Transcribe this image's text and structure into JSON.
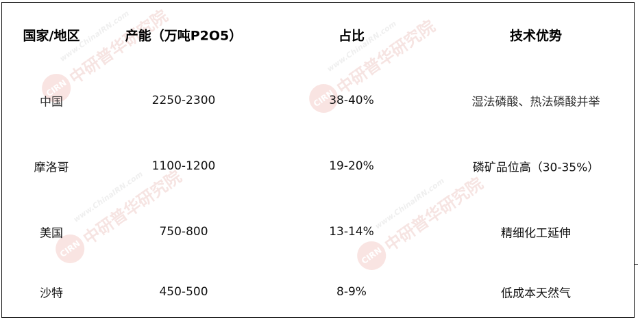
{
  "watermark": {
    "logo": "CIRN",
    "name": "中研普华研究院",
    "url": "www.ChinaIRN.com"
  },
  "table": {
    "headers": [
      "国家/地区",
      "产能（万吨P2O5）",
      "占比",
      "技术优势"
    ],
    "rows": [
      [
        "中国",
        "2250-2300",
        "38-40%",
        "湿法磷酸、热法磷酸并举"
      ],
      [
        "摩洛哥",
        "1100-1200",
        "19-20%",
        "磷矿品位高（30-35%）"
      ],
      [
        "美国",
        "750-800",
        "13-14%",
        "精细化工延伸"
      ],
      [
        "沙特",
        "450-500",
        "8-9%",
        "低成本天然气"
      ]
    ]
  }
}
